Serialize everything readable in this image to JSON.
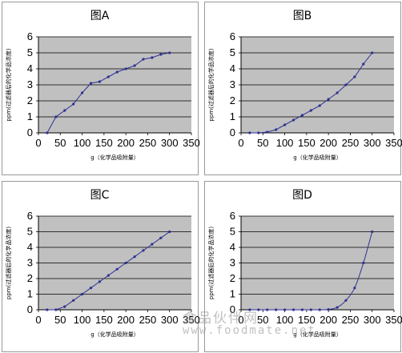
{
  "chart_data": [
    {
      "type": "line",
      "title": "图A",
      "xlabel": "g（化学品吸附量）",
      "ylabel": "ppm(过滤器后的化学品浓度)",
      "xlim": [
        0,
        350
      ],
      "ylim": [
        0,
        6
      ],
      "xticks": [
        "0",
        "50",
        "100",
        "150",
        "200",
        "250",
        "300",
        "350"
      ],
      "yticks": [
        "0",
        "1",
        "2",
        "3",
        "4",
        "5",
        "6"
      ],
      "grid": true,
      "x": [
        20,
        40,
        60,
        80,
        100,
        120,
        140,
        160,
        180,
        200,
        220,
        240,
        260,
        280,
        300
      ],
      "y": [
        0,
        1.0,
        1.4,
        1.8,
        2.5,
        3.1,
        3.2,
        3.5,
        3.8,
        4.0,
        4.2,
        4.6,
        4.7,
        4.9,
        5.0
      ]
    },
    {
      "type": "line",
      "title": "图B",
      "xlabel": "g（化学品吸附量）",
      "ylabel": "ppm(过滤器后的化学品浓度)",
      "xlim": [
        0,
        350
      ],
      "ylim": [
        0,
        6
      ],
      "xticks": [
        "0",
        "50",
        "100",
        "150",
        "200",
        "250",
        "300",
        "350"
      ],
      "yticks": [
        "0",
        "1",
        "2",
        "3",
        "4",
        "5",
        "6"
      ],
      "grid": true,
      "x": [
        20,
        40,
        60,
        80,
        100,
        120,
        140,
        160,
        180,
        200,
        220,
        240,
        260,
        280,
        300
      ],
      "y": [
        0,
        0,
        0.05,
        0.2,
        0.5,
        0.8,
        1.1,
        1.4,
        1.7,
        2.1,
        2.5,
        3.0,
        3.5,
        4.3,
        5.0
      ]
    },
    {
      "type": "line",
      "title": "图C",
      "xlabel": "g（化学品吸附量）",
      "ylabel": "ppm(过滤器后的化学品浓度)",
      "xlim": [
        0,
        350
      ],
      "ylim": [
        0,
        6
      ],
      "xticks": [
        "0",
        "50",
        "100",
        "150",
        "200",
        "250",
        "300",
        "350"
      ],
      "yticks": [
        "0",
        "1",
        "2",
        "3",
        "4",
        "5",
        "6"
      ],
      "grid": true,
      "x": [
        20,
        40,
        60,
        80,
        100,
        120,
        140,
        160,
        180,
        200,
        220,
        240,
        260,
        280,
        300
      ],
      "y": [
        0,
        0,
        0.2,
        0.6,
        1.0,
        1.4,
        1.8,
        2.2,
        2.6,
        3.0,
        3.4,
        3.8,
        4.2,
        4.6,
        5.0
      ]
    },
    {
      "type": "line",
      "title": "图D",
      "xlabel": "g（化学品吸附量）",
      "ylabel": "ppm(过滤器后的化学品浓度)",
      "xlim": [
        0,
        350
      ],
      "ylim": [
        0,
        6
      ],
      "xticks": [
        "0",
        "50",
        "100",
        "150",
        "200",
        "250",
        "300",
        "350"
      ],
      "yticks": [
        "0",
        "1",
        "2",
        "3",
        "4",
        "5",
        "6"
      ],
      "grid": true,
      "x": [
        20,
        40,
        60,
        80,
        100,
        120,
        140,
        160,
        180,
        200,
        220,
        240,
        260,
        280,
        300
      ],
      "y": [
        0,
        0,
        0,
        0,
        0,
        0,
        0,
        0,
        0,
        0.02,
        0.15,
        0.6,
        1.4,
        3.0,
        5.0
      ]
    }
  ],
  "watermark": {
    "brand": "食品伙伴网",
    "url": "www.foodmate.net"
  },
  "colors": {
    "plot_area": "#c0c0c0",
    "series": "#2e3192",
    "axis": "#000000",
    "border": "#999999"
  }
}
